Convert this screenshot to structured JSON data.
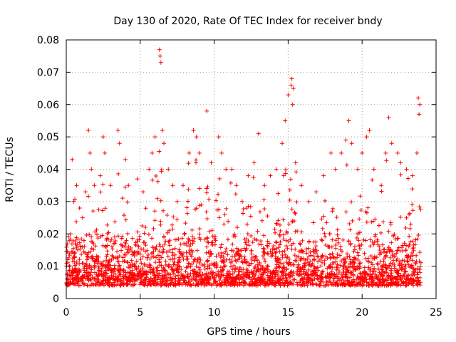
{
  "chart_data": {
    "type": "scatter",
    "title": "Day 130 of 2020, Rate Of TEC Index for receiver bndy",
    "xlabel": "GPS time / hours",
    "ylabel": "ROTI / TECUs",
    "xlim": [
      0,
      25
    ],
    "ylim": [
      0,
      0.08
    ],
    "xticks": [
      0,
      5,
      10,
      15,
      20,
      25
    ],
    "xtick_labels": [
      "0",
      "5",
      "10",
      "15",
      "20",
      "25"
    ],
    "yticks": [
      0,
      0.01,
      0.02,
      0.03,
      0.04,
      0.05,
      0.06,
      0.07,
      0.08
    ],
    "ytick_labels": [
      "0",
      "0.01",
      "0.02",
      "0.03",
      "0.04",
      "0.05",
      "0.06",
      "0.07",
      "0.08"
    ],
    "grid": true,
    "marker": "+",
    "color": "#ff0000",
    "data_range": {
      "x": [
        0,
        24
      ],
      "y": [
        0.002,
        0.077
      ]
    },
    "series": [
      {
        "name": "ROTI",
        "points": [
          [
            0.1,
            0.012
          ],
          [
            0.3,
            0.02
          ],
          [
            0.4,
            0.043
          ],
          [
            0.5,
            0.03
          ],
          [
            0.7,
            0.035
          ],
          [
            0.9,
            0.028
          ],
          [
            1.1,
            0.025
          ],
          [
            1.3,
            0.033
          ],
          [
            1.5,
            0.052
          ],
          [
            1.6,
            0.045
          ],
          [
            1.7,
            0.04
          ],
          [
            1.9,
            0.035
          ],
          [
            2.3,
            0.038
          ],
          [
            2.5,
            0.05
          ],
          [
            2.6,
            0.045
          ],
          [
            3.0,
            0.035
          ],
          [
            3.5,
            0.052
          ],
          [
            3.6,
            0.048
          ],
          [
            4.0,
            0.043
          ],
          [
            4.2,
            0.035
          ],
          [
            4.8,
            0.037
          ],
          [
            5.2,
            0.033
          ],
          [
            5.6,
            0.04
          ],
          [
            5.8,
            0.045
          ],
          [
            6.0,
            0.05
          ],
          [
            6.3,
            0.077
          ],
          [
            6.35,
            0.075
          ],
          [
            6.4,
            0.073
          ],
          [
            6.5,
            0.052
          ],
          [
            6.6,
            0.048
          ],
          [
            6.9,
            0.04
          ],
          [
            7.2,
            0.035
          ],
          [
            7.5,
            0.03
          ],
          [
            7.9,
            0.035
          ],
          [
            8.3,
            0.045
          ],
          [
            8.6,
            0.052
          ],
          [
            8.8,
            0.05
          ],
          [
            9.0,
            0.045
          ],
          [
            9.5,
            0.058
          ],
          [
            9.8,
            0.042
          ],
          [
            10.3,
            0.05
          ],
          [
            10.5,
            0.045
          ],
          [
            10.8,
            0.04
          ],
          [
            11.2,
            0.04
          ],
          [
            11.5,
            0.035
          ],
          [
            11.9,
            0.03
          ],
          [
            12.3,
            0.038
          ],
          [
            12.7,
            0.042
          ],
          [
            13.0,
            0.051
          ],
          [
            13.4,
            0.035
          ],
          [
            13.8,
            0.038
          ],
          [
            14.2,
            0.04
          ],
          [
            14.6,
            0.048
          ],
          [
            14.8,
            0.055
          ],
          [
            15.0,
            0.063
          ],
          [
            15.2,
            0.066
          ],
          [
            15.25,
            0.068
          ],
          [
            15.3,
            0.06
          ],
          [
            15.35,
            0.065
          ],
          [
            15.5,
            0.042
          ],
          [
            15.9,
            0.035
          ],
          [
            16.4,
            0.03
          ],
          [
            16.9,
            0.033
          ],
          [
            17.4,
            0.038
          ],
          [
            17.9,
            0.045
          ],
          [
            18.2,
            0.04
          ],
          [
            18.6,
            0.045
          ],
          [
            18.9,
            0.049
          ],
          [
            19.1,
            0.055
          ],
          [
            19.3,
            0.048
          ],
          [
            19.7,
            0.04
          ],
          [
            20.0,
            0.045
          ],
          [
            20.3,
            0.05
          ],
          [
            20.5,
            0.052
          ],
          [
            20.8,
            0.04
          ],
          [
            21.3,
            0.035
          ],
          [
            21.6,
            0.045
          ],
          [
            21.8,
            0.056
          ],
          [
            22.0,
            0.048
          ],
          [
            22.4,
            0.045
          ],
          [
            22.6,
            0.042
          ],
          [
            23.0,
            0.04
          ],
          [
            23.4,
            0.038
          ],
          [
            23.7,
            0.045
          ],
          [
            23.8,
            0.062
          ],
          [
            23.85,
            0.057
          ],
          [
            23.9,
            0.06
          ]
        ]
      }
    ]
  }
}
